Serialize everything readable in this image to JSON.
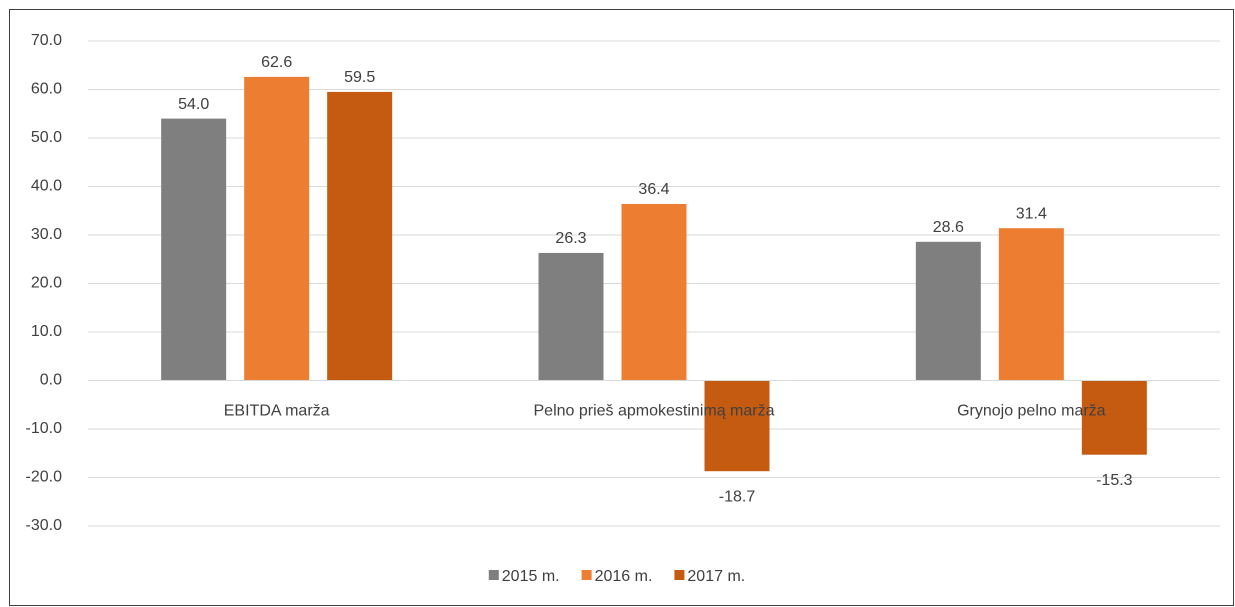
{
  "chart_data": {
    "type": "bar",
    "categories": [
      "EBITDA marža",
      "Pelno prieš apmokestinimą marža",
      "Grynojo pelno marža"
    ],
    "series": [
      {
        "name": "2015 m.",
        "color": "#7f7f7f",
        "values": [
          54.0,
          26.3,
          28.6
        ],
        "value_labels": [
          "54.0",
          "26.3",
          "28.6"
        ]
      },
      {
        "name": "2016 m.",
        "color": "#ed7d31",
        "values": [
          62.6,
          36.4,
          31.4
        ],
        "value_labels": [
          "62.6",
          "36.4",
          "31.4"
        ]
      },
      {
        "name": "2017 m.",
        "color": "#c55a11",
        "values": [
          59.5,
          -18.7,
          -15.3
        ],
        "value_labels": [
          "59.5",
          "-18.7",
          "-15.3"
        ]
      }
    ],
    "ylim": [
      -30,
      70
    ],
    "yticks": [
      {
        "value": -30,
        "label": "-30.0"
      },
      {
        "value": -20,
        "label": "-20.0"
      },
      {
        "value": -10,
        "label": "-10.0"
      },
      {
        "value": 0,
        "label": "0.0"
      },
      {
        "value": 10,
        "label": "10.0"
      },
      {
        "value": 20,
        "label": "20.0"
      },
      {
        "value": 30,
        "label": "30.0"
      },
      {
        "value": 40,
        "label": "40.0"
      },
      {
        "value": 50,
        "label": "50.0"
      },
      {
        "value": 60,
        "label": "60.0"
      },
      {
        "value": 70,
        "label": "70.0"
      }
    ],
    "grid": true,
    "legend": "bottom"
  }
}
